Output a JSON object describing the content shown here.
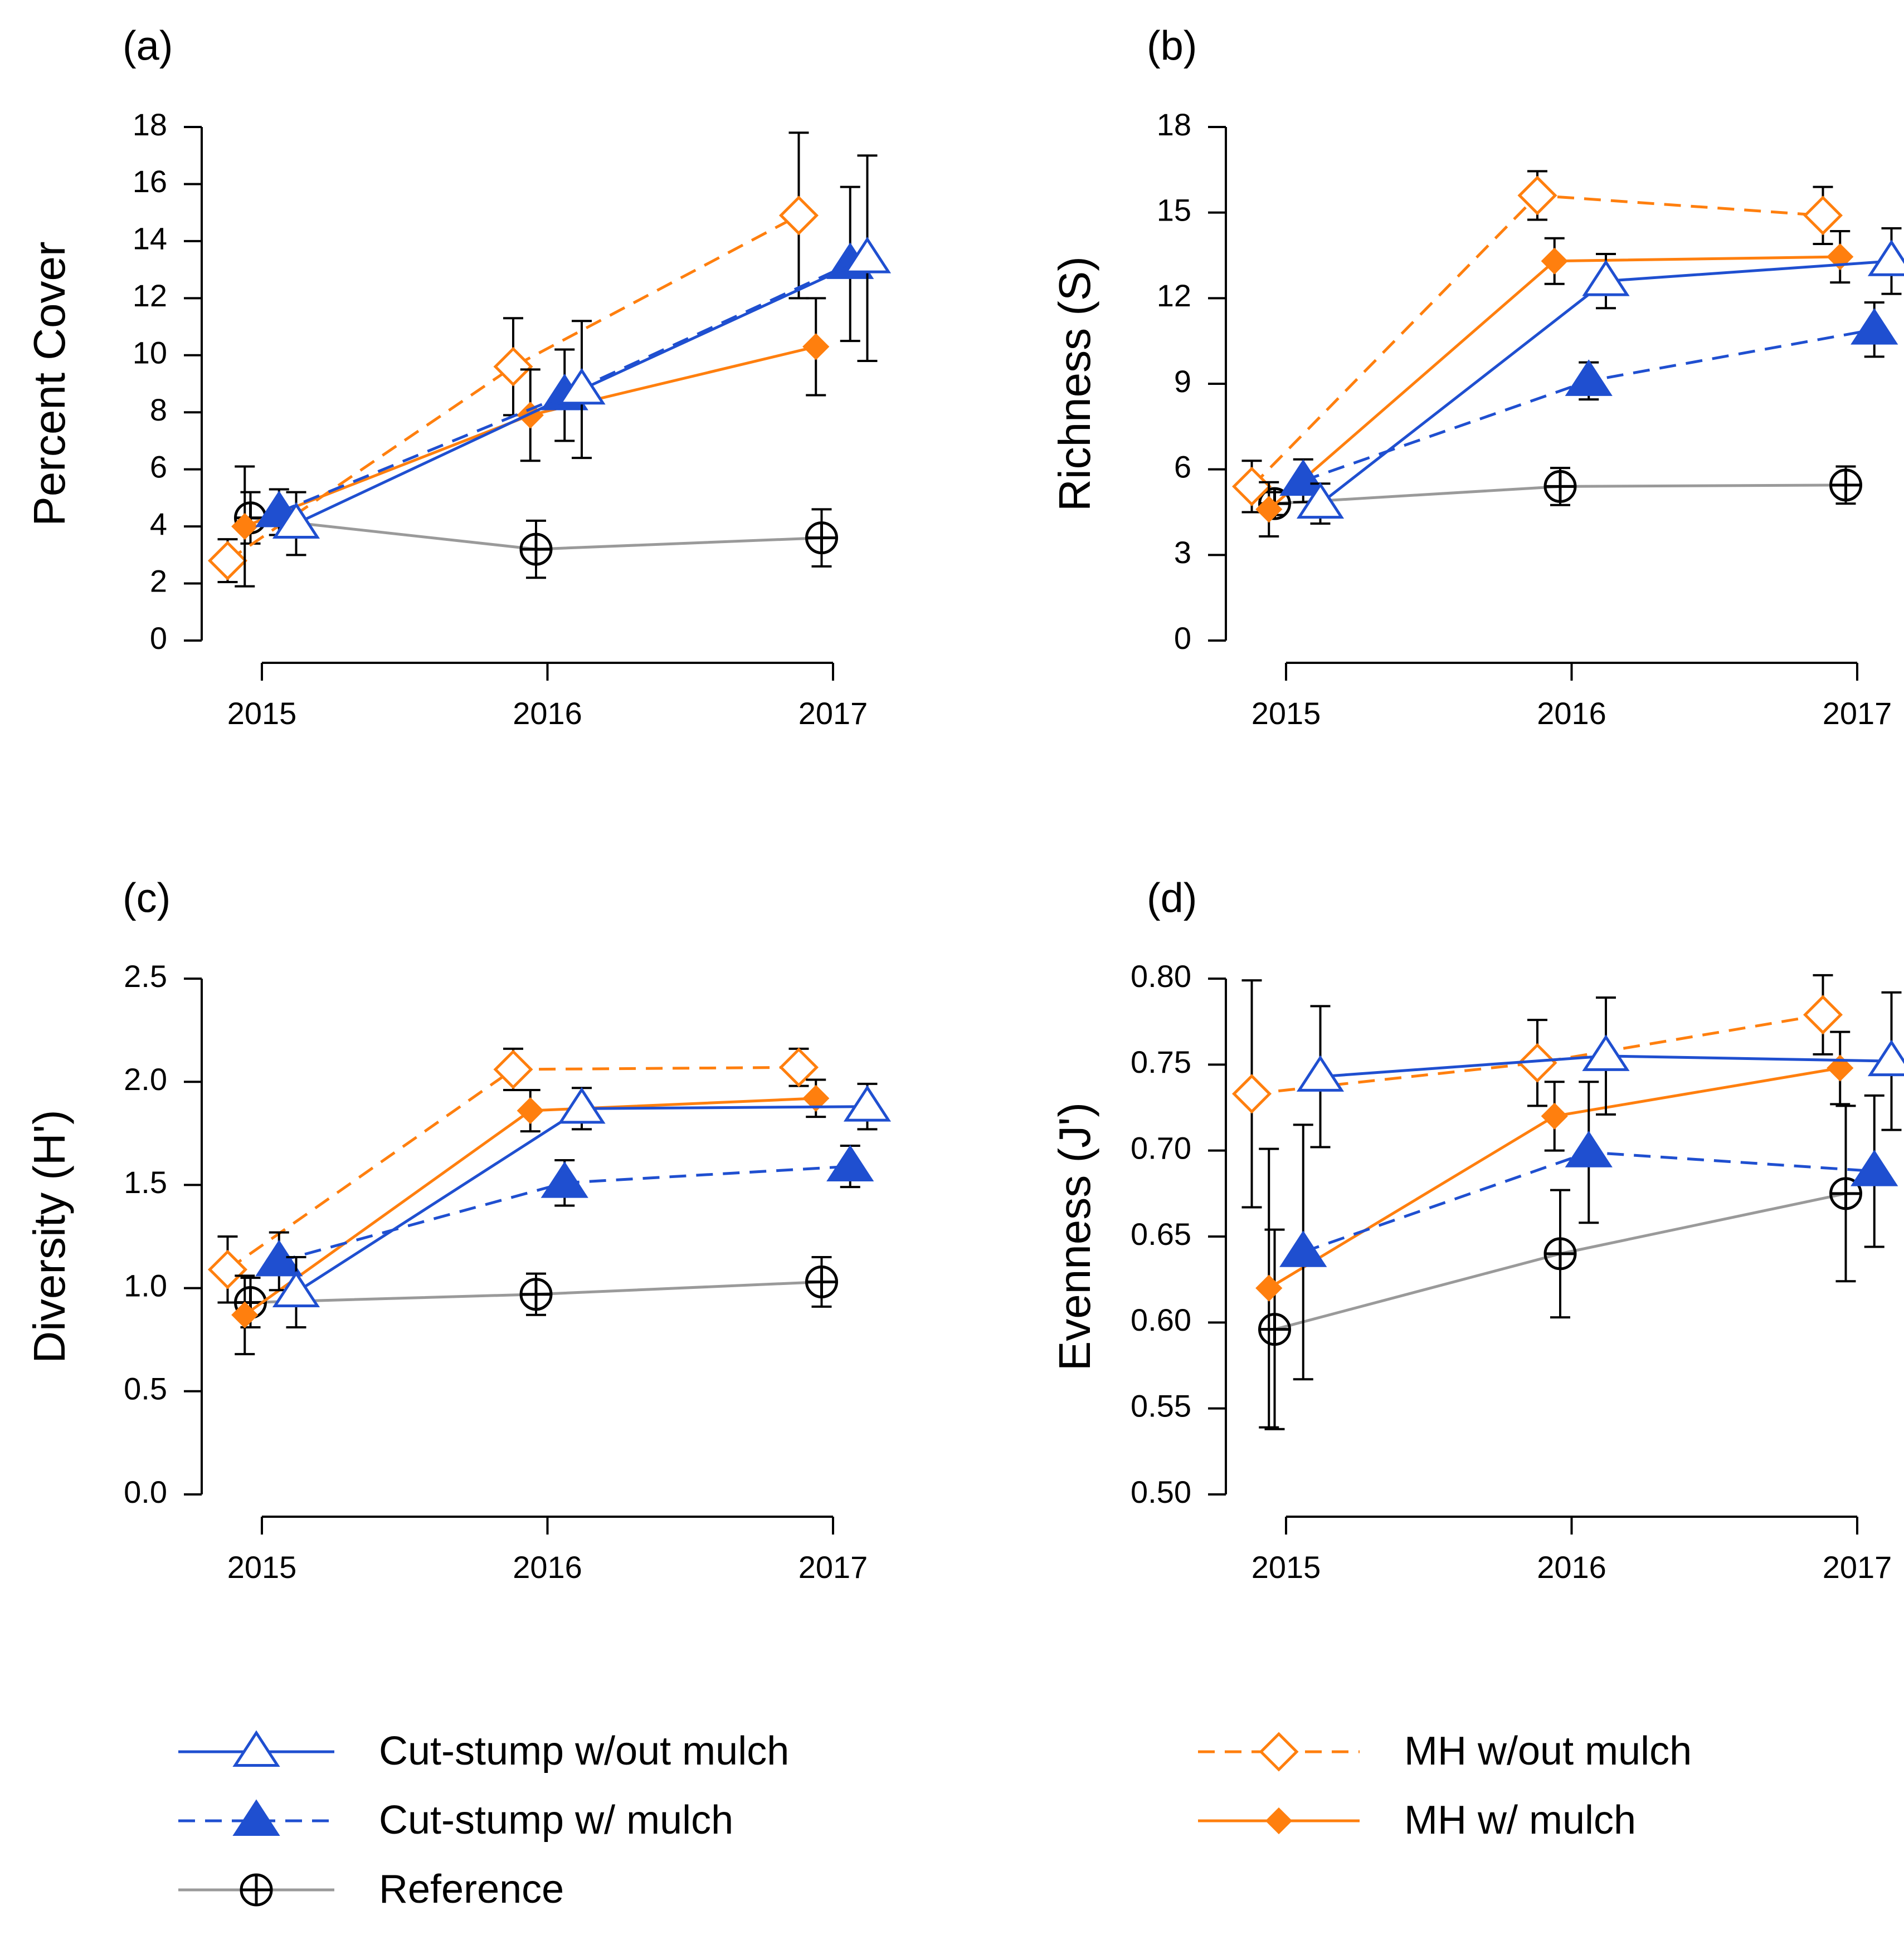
{
  "chart_data": [
    {
      "type": "line",
      "panel_label": "(a)",
      "ylabel": "Percent Cover",
      "xlabel": "",
      "categories": [
        "2015",
        "2016",
        "2017"
      ],
      "ylim": [
        0,
        18
      ],
      "yticks": [
        "0",
        "2",
        "4",
        "6",
        "8",
        "10",
        "12",
        "14",
        "16",
        "18"
      ],
      "series": [
        {
          "name": "Reference",
          "values": [
            4.3,
            3.2,
            3.6
          ],
          "err": [
            0.9,
            1.0,
            1.0
          ]
        },
        {
          "name": "MH w/out mulch",
          "values": [
            2.8,
            9.6,
            14.9
          ],
          "err": [
            0.75,
            1.7,
            2.9
          ]
        },
        {
          "name": "MH w/ mulch",
          "values": [
            4.0,
            7.9,
            10.3
          ],
          "err": [
            2.1,
            1.6,
            1.7
          ]
        },
        {
          "name": "Cut-stump w/ mulch",
          "values": [
            4.5,
            8.6,
            13.2
          ],
          "err": [
            0.8,
            1.6,
            2.7
          ]
        },
        {
          "name": "Cut-stump w/out mulch",
          "values": [
            4.1,
            8.8,
            13.4
          ],
          "err": [
            1.1,
            2.4,
            3.6
          ]
        }
      ]
    },
    {
      "type": "line",
      "panel_label": "(b)",
      "ylabel": "Richness (S)",
      "xlabel": "",
      "categories": [
        "2015",
        "2016",
        "2017"
      ],
      "ylim": [
        0,
        18
      ],
      "yticks": [
        "0",
        "3",
        "6",
        "9",
        "12",
        "15",
        "18"
      ],
      "series": [
        {
          "name": "Reference",
          "values": [
            4.8,
            5.4,
            5.45
          ],
          "err": [
            0.4,
            0.65,
            0.65
          ]
        },
        {
          "name": "MH w/out mulch",
          "values": [
            5.4,
            15.6,
            14.9
          ],
          "err": [
            0.9,
            0.85,
            1.0
          ]
        },
        {
          "name": "MH w/ mulch",
          "values": [
            4.6,
            13.3,
            13.45
          ],
          "err": [
            0.95,
            0.8,
            0.9
          ]
        },
        {
          "name": "Cut-stump w/ mulch",
          "values": [
            5.6,
            9.1,
            10.9
          ],
          "err": [
            0.75,
            0.65,
            0.95
          ]
        },
        {
          "name": "Cut-stump w/out mulch",
          "values": [
            4.8,
            12.6,
            13.3
          ],
          "err": [
            0.7,
            0.95,
            1.15
          ]
        }
      ]
    },
    {
      "type": "line",
      "panel_label": "(c)",
      "ylabel": "Diversity (H')",
      "xlabel": "",
      "categories": [
        "2015",
        "2016",
        "2017"
      ],
      "ylim": [
        0,
        2.5
      ],
      "yticks": [
        "0.0",
        "0.5",
        "1.0",
        "1.5",
        "2.0",
        "2.5"
      ],
      "series": [
        {
          "name": "Reference",
          "values": [
            0.93,
            0.97,
            1.03
          ],
          "err": [
            0.12,
            0.1,
            0.12
          ]
        },
        {
          "name": "MH w/out mulch",
          "values": [
            1.09,
            2.06,
            2.07
          ],
          "err": [
            0.16,
            0.1,
            0.09
          ]
        },
        {
          "name": "MH w/ mulch",
          "values": [
            0.87,
            1.86,
            1.92
          ],
          "err": [
            0.19,
            0.1,
            0.09
          ]
        },
        {
          "name": "Cut-stump w/ mulch",
          "values": [
            1.13,
            1.51,
            1.59
          ],
          "err": [
            0.14,
            0.11,
            0.1
          ]
        },
        {
          "name": "Cut-stump w/out mulch",
          "values": [
            0.98,
            1.87,
            1.88
          ],
          "err": [
            0.17,
            0.1,
            0.11
          ]
        }
      ]
    },
    {
      "type": "line",
      "panel_label": "(d)",
      "ylabel": "Evenness (J')",
      "xlabel": "",
      "categories": [
        "2015",
        "2016",
        "2017"
      ],
      "ylim": [
        0.5,
        0.8
      ],
      "yticks": [
        "0.50",
        "0.55",
        "0.60",
        "0.65",
        "0.70",
        "0.75",
        "0.80"
      ],
      "series": [
        {
          "name": "Reference",
          "values": [
            0.596,
            0.64,
            0.675
          ],
          "err": [
            0.058,
            0.037,
            0.051
          ]
        },
        {
          "name": "MH w/out mulch",
          "values": [
            0.733,
            0.751,
            0.779
          ],
          "err": [
            0.066,
            0.025,
            0.023
          ]
        },
        {
          "name": "MH w/ mulch",
          "values": [
            0.62,
            0.72,
            0.748
          ],
          "err": [
            0.081,
            0.02,
            0.021
          ]
        },
        {
          "name": "Cut-stump w/ mulch",
          "values": [
            0.641,
            0.699,
            0.688
          ],
          "err": [
            0.074,
            0.041,
            0.044
          ]
        },
        {
          "name": "Cut-stump w/out mulch",
          "values": [
            0.743,
            0.755,
            0.752
          ],
          "err": [
            0.041,
            0.034,
            0.04
          ]
        }
      ]
    }
  ],
  "legend": {
    "items": [
      {
        "key": "cs_nomulch",
        "label": "Cut-stump w/out mulch"
      },
      {
        "key": "cs_mulch",
        "label": "Cut-stump w/ mulch"
      },
      {
        "key": "ref",
        "label": "Reference"
      },
      {
        "key": "mh_nomulch",
        "label": "MH w/out mulch"
      },
      {
        "key": "mh_mulch",
        "label": "MH w/ mulch"
      }
    ]
  },
  "colors": {
    "blue": "#1f4fd0",
    "orange": "#ff7f0e",
    "gray": "#9a9a9a",
    "black": "#000000"
  }
}
